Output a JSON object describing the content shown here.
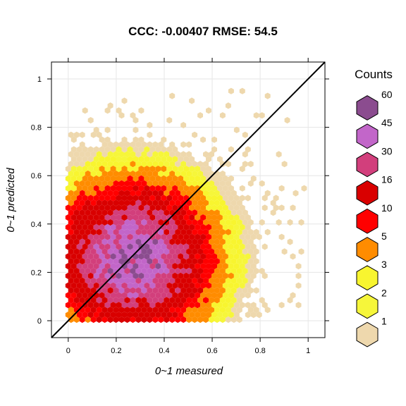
{
  "chart_data": {
    "type": "heatmap",
    "subtype": "hexbin",
    "title": "CCC: -0.00407  RMSE: 54.5",
    "xlabel": "0~1 measured",
    "ylabel": "0~1 predicted",
    "xlim": [
      -0.07,
      1.07
    ],
    "ylim": [
      -0.07,
      1.07
    ],
    "xticks": [
      "0",
      "0.2",
      "0.4",
      "0.6",
      "0.8",
      "1"
    ],
    "yticks": [
      "0",
      "0.2",
      "0.4",
      "0.6",
      "0.8",
      "1"
    ],
    "grid": true,
    "reference_line": {
      "type": "identity",
      "slope": 1,
      "intercept": 0
    },
    "legend": {
      "title": "Counts",
      "placement": "right",
      "entries": [
        {
          "label": "60",
          "color": "#8b4c8f"
        },
        {
          "label": "45",
          "color": "#c266c9"
        },
        {
          "label": "30",
          "color": "#d23f7c"
        },
        {
          "label": "16",
          "color": "#d90000"
        },
        {
          "label": "10",
          "color": "#ff0000"
        },
        {
          "label": "5",
          "color": "#ff8c00"
        },
        {
          "label": "3",
          "color": "#f8f52f"
        },
        {
          "label": "2",
          "color": "#f6f63a"
        },
        {
          "label": "1",
          "color": "#eed8ad"
        }
      ]
    },
    "density": {
      "center": [
        0.27,
        0.26
      ],
      "spread": [
        0.18,
        0.17
      ],
      "correlation": 0.0,
      "peak_count": 60,
      "x_range": [
        0.0,
        1.0
      ],
      "y_range": [
        0.0,
        0.95
      ]
    }
  }
}
